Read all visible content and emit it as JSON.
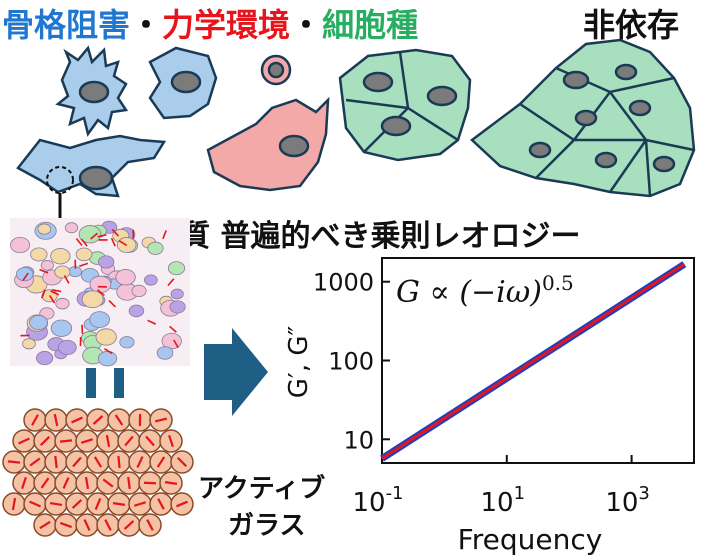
{
  "header": {
    "part1": "骨格阻害",
    "sep1": "・",
    "part2": "力学環境",
    "sep2": "・",
    "part3": "細胞種",
    "part4": "非依存",
    "colors": {
      "part1": "#1f77d0",
      "part2": "#e8141c",
      "part3": "#27ae60",
      "part4": "#111111"
    }
  },
  "subtitle": "細胞質 普遍的べき乗則レオロジー",
  "equals": "=",
  "side_label": {
    "line1": "アクティブ",
    "line2": "ガラス"
  },
  "icons": [
    "cell-icon",
    "arrow-right-icon",
    "arrow-down-icon",
    "particle-icon"
  ],
  "chart_data": {
    "type": "line",
    "annotation": "G ∝ (−iω)^0.5",
    "annotation_parts": {
      "base": "G ∝ (−iω)",
      "exponent": "0.5"
    },
    "xlabel": "Frequency",
    "ylabel": "G′, G″",
    "xscale": "log",
    "yscale": "log",
    "xlim": [
      0.1,
      10000
    ],
    "ylim": [
      5,
      2000
    ],
    "xticks": [
      {
        "value": 0.1,
        "base": "10",
        "exp": "-1"
      },
      {
        "value": 10,
        "base": "10",
        "exp": "1"
      },
      {
        "value": 1000,
        "base": "10",
        "exp": "3"
      }
    ],
    "yticks": [
      {
        "value": 10,
        "label": "10"
      },
      {
        "value": 100,
        "label": "100"
      },
      {
        "value": 1000,
        "label": "1000"
      }
    ],
    "series": [
      {
        "x": [
          0.1,
          7000
        ],
        "y": [
          5.7,
          1670
        ],
        "color": "#1f3fbf"
      },
      {
        "x": [
          0.1,
          7000
        ],
        "y": [
          5.7,
          1670
        ],
        "color": "#e8141c"
      }
    ]
  }
}
